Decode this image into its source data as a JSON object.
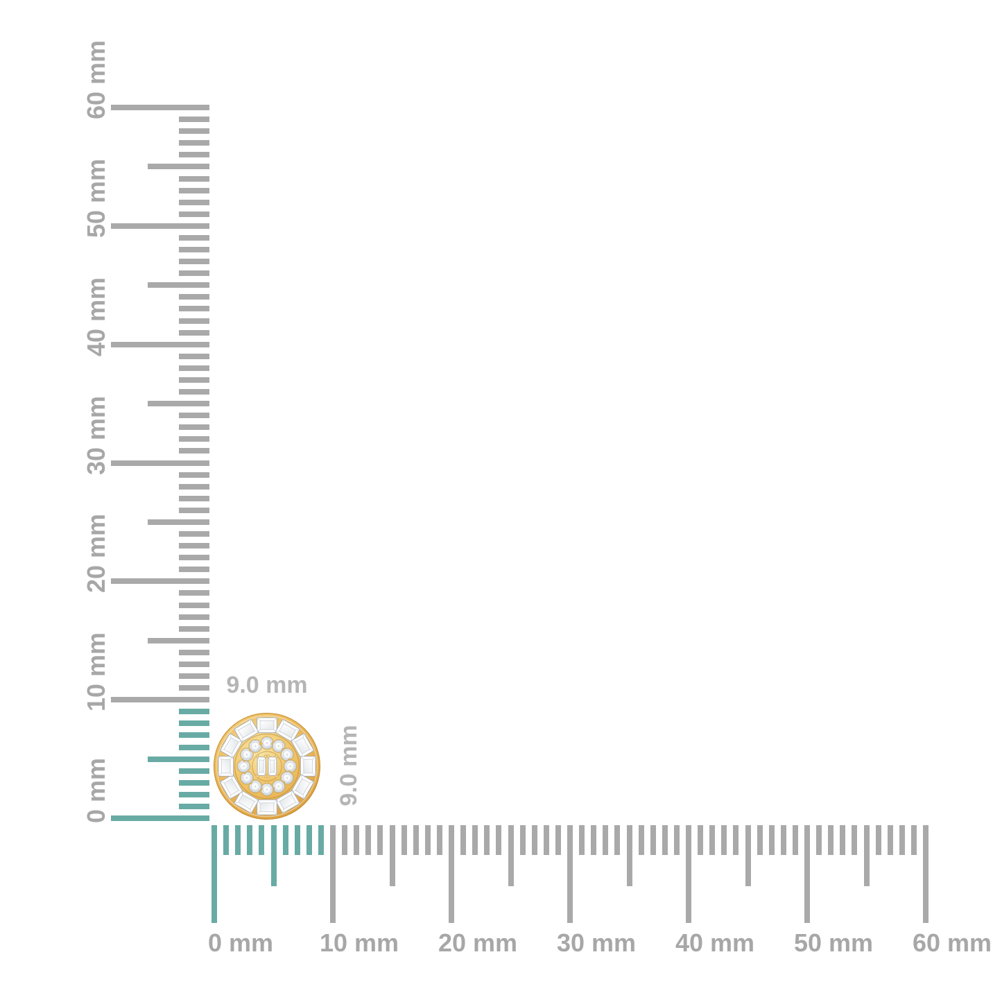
{
  "page": {
    "background": "#ffffff"
  },
  "product": {
    "name": "gold-diamond-cluster-stud-earring",
    "width_label": "9.0 mm",
    "height_label": "9.0 mm",
    "outer_baguette_count": 12,
    "inner_round_count": 12,
    "center_baguette_count": 2,
    "gold_color": "#eab95a",
    "gold_rim_color": "#c88e2e",
    "diamond_color": "#f6f8fa",
    "diamond_edge_color": "#a7adb4"
  },
  "rulers": {
    "unit": "mm",
    "min": 0,
    "max": 60,
    "major_step": 10,
    "mid_step": 5,
    "minor_step": 1,
    "highlight_mm": 9,
    "vertical_labels": [
      "0 mm",
      "10 mm",
      "20 mm",
      "30 mm",
      "40 mm",
      "50 mm",
      "60 mm"
    ],
    "horizontal_labels": [
      "0 mm",
      "10 mm",
      "20 mm",
      "30 mm",
      "40 mm",
      "50 mm",
      "60 mm"
    ],
    "colors": {
      "tick_gray": "#a9a9a9",
      "label_gray": "#a7a7a7",
      "highlight_teal": "#68aba4",
      "dim_label_gray": "#b5b5b5"
    }
  }
}
